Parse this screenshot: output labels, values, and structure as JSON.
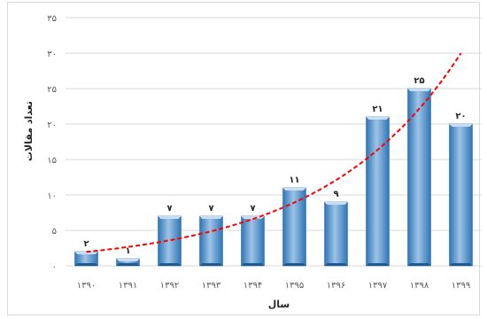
{
  "chart_data": {
    "type": "bar",
    "categories": [
      "۱۳۹۰",
      "۱۳۹۱",
      "۱۳۹۲",
      "۱۳۹۳",
      "۱۳۹۴",
      "۱۳۹۵",
      "۱۳۹۶",
      "۱۳۹۷",
      "۱۳۹۸",
      "۱۳۹۹"
    ],
    "values": [
      2,
      1,
      7,
      7,
      7,
      11,
      9,
      21,
      25,
      20
    ],
    "data_labels": [
      "۲",
      "۱",
      "۷",
      "۷",
      "۷",
      "۱۱",
      "۹",
      "۲۱",
      "۲۵",
      "۲۰"
    ],
    "y_ticks": [
      0,
      5,
      10,
      15,
      20,
      25,
      30,
      35
    ],
    "y_tick_labels": [
      "۰",
      "۵",
      "۱۰",
      "۱۵",
      "۲۰",
      "۲۵",
      "۳۰",
      "۳۵"
    ],
    "ylim": [
      0,
      35
    ],
    "xlabel": "سال",
    "ylabel": "تعداد مقالات",
    "title": "",
    "grid": true,
    "legend": "none",
    "trendline": {
      "type": "exponential",
      "color": "#ff0000",
      "style": "dashed"
    },
    "colors": {
      "bar_light": "#9dc3e6",
      "bar_dark": "#2e75b6",
      "grid": "#d9d9d9"
    }
  }
}
